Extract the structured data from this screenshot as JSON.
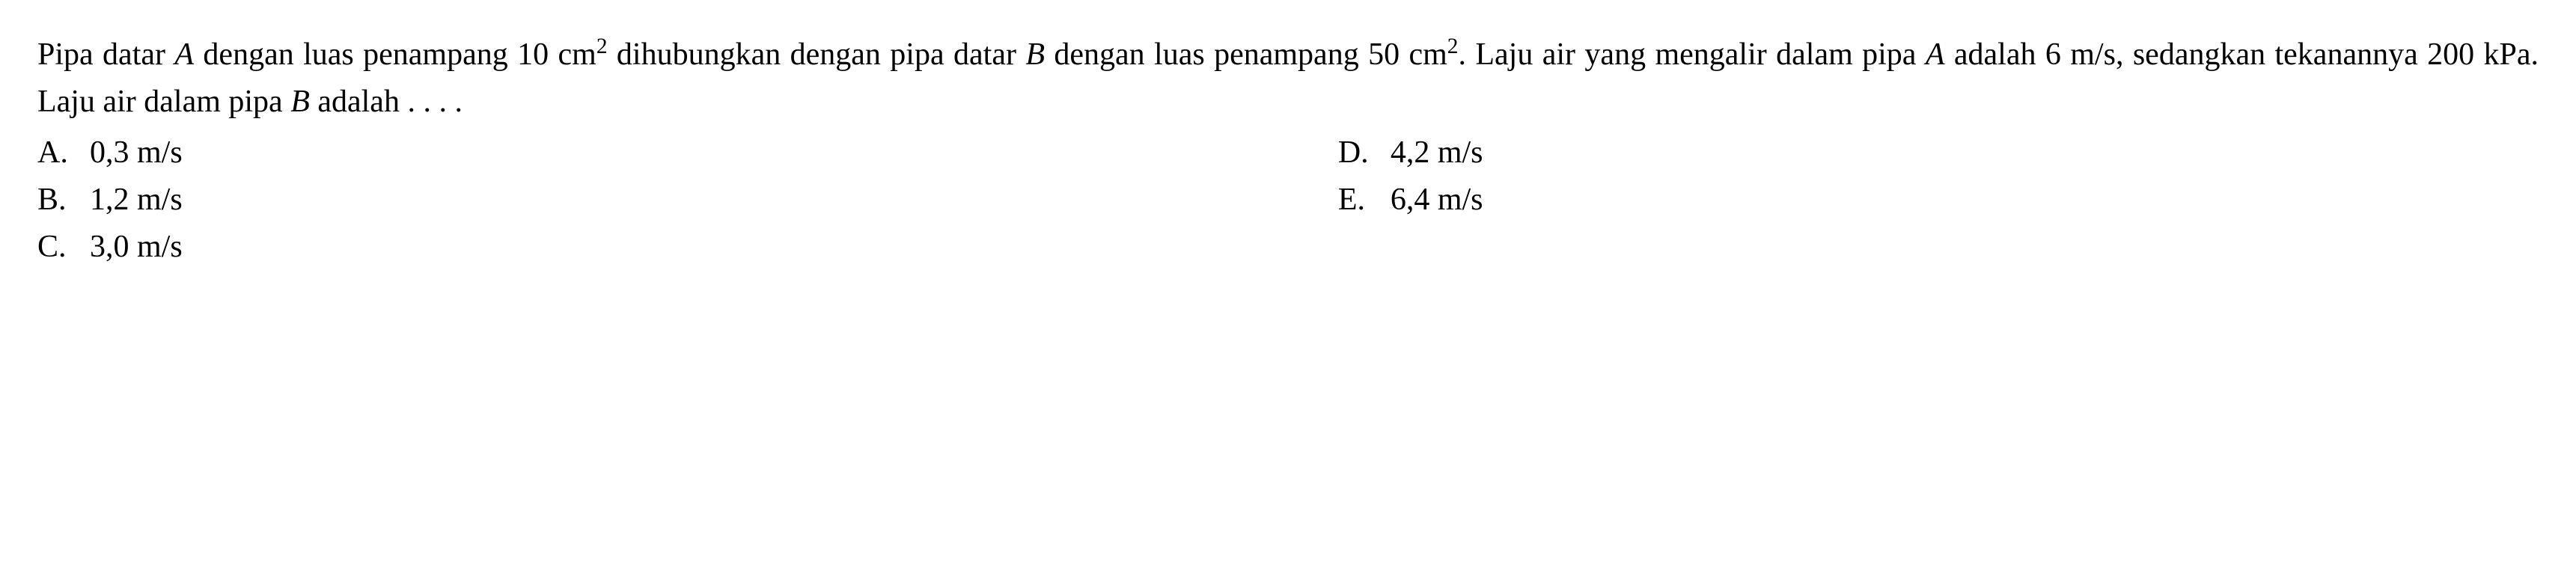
{
  "question": {
    "text_parts": {
      "p1": "Pipa datar ",
      "var_A1": "A",
      "p2": " dengan luas penampang 10 cm",
      "sup1": "2",
      "p3": " dihubungkan dengan pipa datar ",
      "var_B1": "B",
      "p4": " dengan luas penampang 50 cm",
      "sup2": "2",
      "p5": ". Laju air yang mengalir dalam pipa ",
      "var_A2": "A",
      "p6": " adalah 6 m/s, sedangkan tekanannya 200 kPa. Laju air dalam pipa ",
      "var_B2": "B",
      "p7": " adalah . . . ."
    }
  },
  "options": {
    "A": {
      "letter": "A.",
      "value": "0,3 m/s"
    },
    "B": {
      "letter": "B.",
      "value": "1,2 m/s"
    },
    "C": {
      "letter": "C.",
      "value": "3,0 m/s"
    },
    "D": {
      "letter": "D.",
      "value": "4,2 m/s"
    },
    "E": {
      "letter": "E.",
      "value": "6,4 m/s"
    }
  },
  "style": {
    "font_size_pt": 42,
    "text_color": "#000000",
    "background_color": "#ffffff",
    "line_height": 1.5,
    "font_family": "Georgia, Times New Roman, serif"
  }
}
